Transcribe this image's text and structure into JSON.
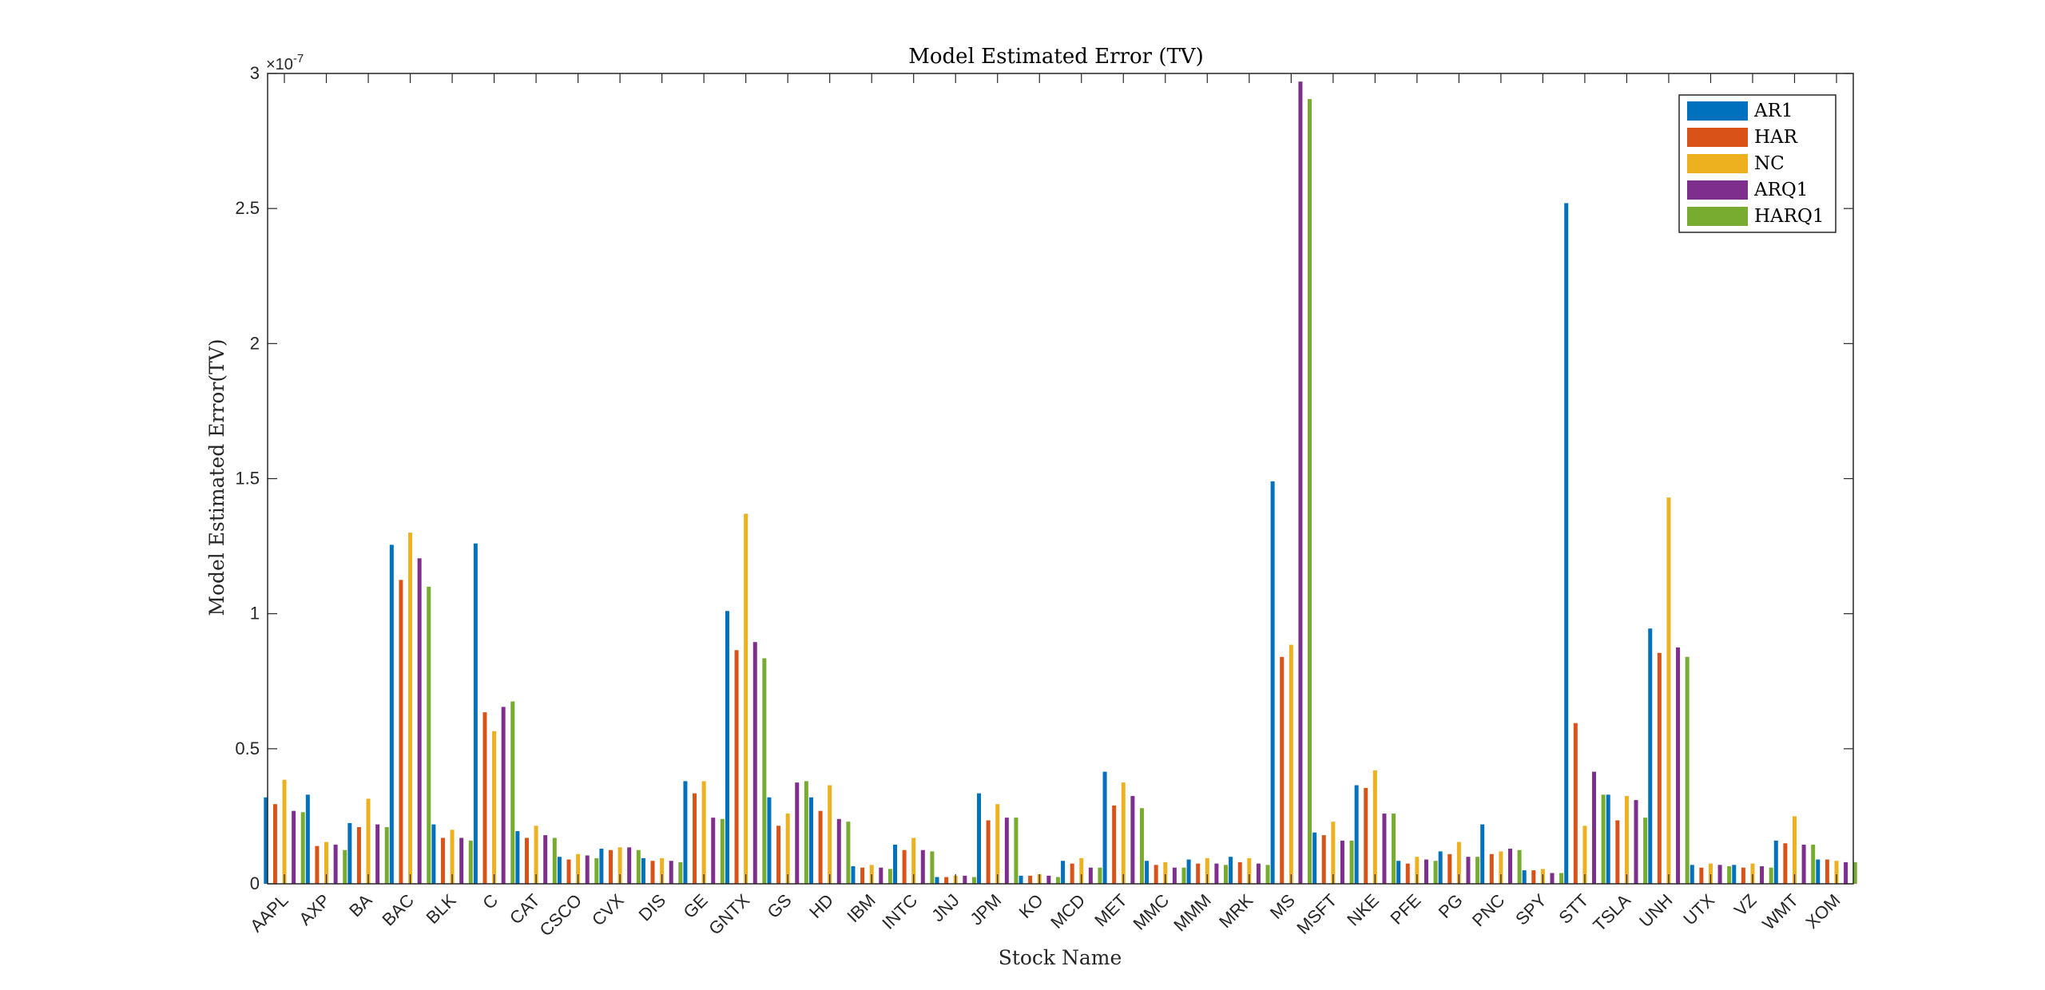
{
  "chart_data": {
    "type": "bar",
    "title": "Model Estimated Error (TV)",
    "xlabel": "Stock Name",
    "ylabel": "Model Estimated Error(TV)",
    "y_exponent": "×10",
    "y_exponent_power": "-7",
    "ylim": [
      0,
      3
    ],
    "yticks": [
      "0",
      "0.5",
      "1",
      "1.5",
      "2",
      "2.5",
      "3"
    ],
    "yticks_values": [
      0,
      0.5,
      1,
      1.5,
      2,
      2.5,
      3
    ],
    "grid": false,
    "legend_position": "top-right",
    "categories": [
      "AAPL",
      "AXP",
      "BA",
      "BAC",
      "BLK",
      "C",
      "CAT",
      "CSCO",
      "CVX",
      "DIS",
      "GE",
      "GNTX",
      "GS",
      "HD",
      "IBM",
      "INTC",
      "JNJ",
      "JPM",
      "KO",
      "MCD",
      "MET",
      "MMC",
      "MMM",
      "MRK",
      "MS",
      "MSFT",
      "NKE",
      "PFE",
      "PG",
      "PNC",
      "SPY",
      "STT",
      "TSLA",
      "UNH",
      "UTX",
      "VZ",
      "WMT",
      "XOM"
    ],
    "series": [
      {
        "name": "AR1",
        "color": "#0072BD",
        "values": [
          0.32,
          0.33,
          0.225,
          1.255,
          0.22,
          1.26,
          0.195,
          0.1,
          0.13,
          0.095,
          0.38,
          1.01,
          0.32,
          0.32,
          0.065,
          0.145,
          0.025,
          0.335,
          0.03,
          0.085,
          0.415,
          0.085,
          0.09,
          0.1,
          1.49,
          0.19,
          0.365,
          0.085,
          0.12,
          0.22,
          0.05,
          2.52,
          0.33,
          0.945,
          0.07,
          0.07,
          0.16,
          0.09
        ]
      },
      {
        "name": "HAR",
        "color": "#D95319",
        "values": [
          0.295,
          0.14,
          0.21,
          1.125,
          0.17,
          0.635,
          0.17,
          0.09,
          0.125,
          0.085,
          0.335,
          0.865,
          0.215,
          0.27,
          0.06,
          0.125,
          0.025,
          0.235,
          0.03,
          0.075,
          0.29,
          0.07,
          0.075,
          0.08,
          0.84,
          0.18,
          0.355,
          0.075,
          0.11,
          0.11,
          0.05,
          0.595,
          0.235,
          0.855,
          0.06,
          0.06,
          0.15,
          0.09
        ]
      },
      {
        "name": "NC",
        "color": "#EDB120",
        "values": [
          0.385,
          0.155,
          0.315,
          1.3,
          0.2,
          0.565,
          0.215,
          0.11,
          0.135,
          0.095,
          0.38,
          1.37,
          0.26,
          0.365,
          0.07,
          0.17,
          0.03,
          0.295,
          0.035,
          0.095,
          0.375,
          0.08,
          0.095,
          0.095,
          0.885,
          0.23,
          0.42,
          0.1,
          0.155,
          0.12,
          0.055,
          0.215,
          0.325,
          1.43,
          0.075,
          0.075,
          0.25,
          0.085
        ]
      },
      {
        "name": "ARQ1",
        "color": "#7E2F8E",
        "values": [
          0.27,
          0.145,
          0.22,
          1.205,
          0.17,
          0.655,
          0.18,
          0.105,
          0.135,
          0.085,
          0.245,
          0.895,
          0.375,
          0.24,
          0.06,
          0.125,
          0.03,
          0.245,
          0.03,
          0.06,
          0.325,
          0.06,
          0.075,
          0.075,
          2.97,
          0.16,
          0.26,
          0.09,
          0.1,
          0.13,
          0.04,
          0.415,
          0.31,
          0.875,
          0.07,
          0.065,
          0.145,
          0.08
        ]
      },
      {
        "name": "HARQ1",
        "color": "#77AC30",
        "values": [
          0.265,
          0.125,
          0.21,
          1.1,
          0.16,
          0.675,
          0.17,
          0.095,
          0.125,
          0.08,
          0.24,
          0.835,
          0.38,
          0.23,
          0.055,
          0.12,
          0.025,
          0.245,
          0.025,
          0.06,
          0.28,
          0.06,
          0.07,
          0.07,
          2.905,
          0.16,
          0.26,
          0.085,
          0.1,
          0.125,
          0.04,
          0.33,
          0.245,
          0.84,
          0.065,
          0.06,
          0.145,
          0.08
        ]
      }
    ]
  }
}
